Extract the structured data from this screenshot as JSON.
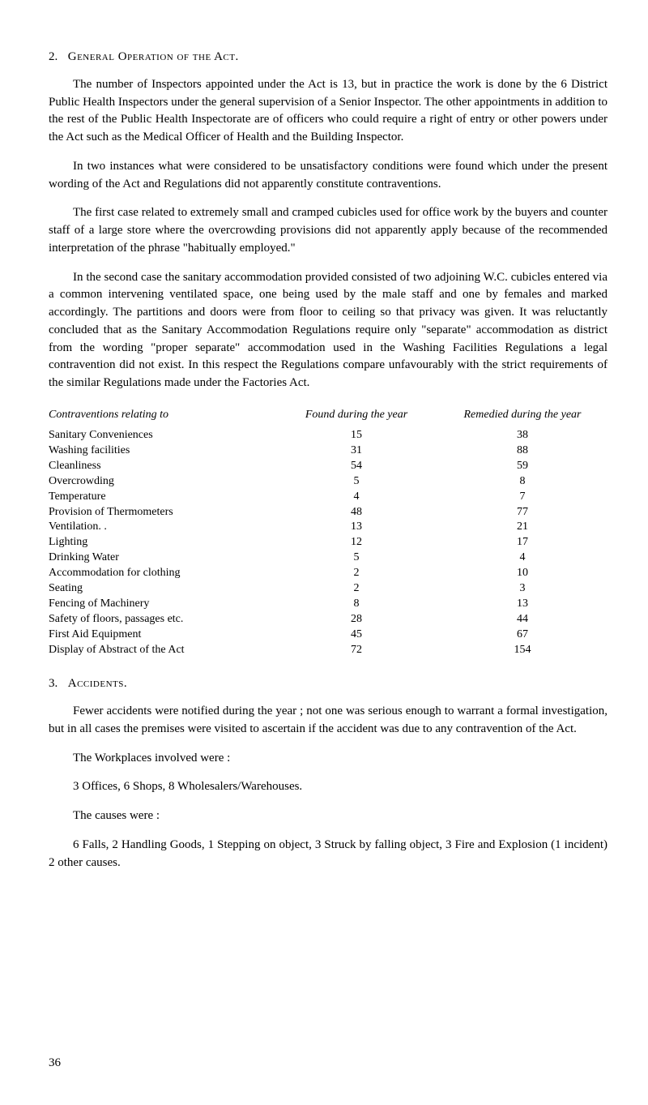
{
  "section2": {
    "number": "2.",
    "title": "General Operation of the Act.",
    "para1": "The number of Inspectors appointed under the Act is 13, but in practice the work is done by the 6 District Public Health Inspectors under the general supervision of a Senior Inspector. The other appointments in addition to the rest of the Public Health Inspectorate are of officers who could require a right of entry or other powers under the Act such as the Medical Officer of Health and the Building Inspector.",
    "para2": "In two instances what were considered to be unsatisfactory conditions were found which under the present wording of the Act and Regulations did not apparently constitute contraventions.",
    "para3": "The first case related to extremely small and cramped cubicles used for office work by the buyers and counter staff of a large store where the overcrowding provisions did not apparently apply because of the recommended interpretation of the phrase \"habitually employed.\"",
    "para4": "In the second case the sanitary accommodation provided consisted of two adjoining W.C. cubicles entered via a common intervening ventilated space, one being used by the male staff and one by females and marked accordingly. The partitions and doors were from floor to ceiling so that privacy was given. It was reluctantly concluded that as the Sanitary Accommodation Regulations require only \"separate\" accommodation as district from the wording \"proper separate\" accommodation used in the Washing Facilities Regulations a legal contravention did not exist. In this respect the Regulations compare unfavourably with the strict requirements of the similar Regulations made under the Factories Act."
  },
  "table": {
    "header": {
      "col1": "Contraventions relating to",
      "col2": "Found during the year",
      "col3": "Remedied during the year"
    },
    "rows": [
      {
        "label": "Sanitary Conveniences",
        "found": "15",
        "remedied": "38"
      },
      {
        "label": "Washing facilities",
        "found": "31",
        "remedied": "88"
      },
      {
        "label": "Cleanliness",
        "found": "54",
        "remedied": "59"
      },
      {
        "label": "Overcrowding",
        "found": "5",
        "remedied": "8"
      },
      {
        "label": "Temperature",
        "found": "4",
        "remedied": "7"
      },
      {
        "label": "Provision of Thermometers",
        "found": "48",
        "remedied": "77"
      },
      {
        "label": "Ventilation. .",
        "found": "13",
        "remedied": "21"
      },
      {
        "label": "Lighting",
        "found": "12",
        "remedied": "17"
      },
      {
        "label": "Drinking Water",
        "found": "5",
        "remedied": "4"
      },
      {
        "label": "Accommodation for clothing",
        "found": "2",
        "remedied": "10"
      },
      {
        "label": "Seating",
        "found": "2",
        "remedied": "3"
      },
      {
        "label": "Fencing of Machinery",
        "found": "8",
        "remedied": "13"
      },
      {
        "label": "Safety of floors, passages etc.",
        "found": "28",
        "remedied": "44"
      },
      {
        "label": "First Aid Equipment",
        "found": "45",
        "remedied": "67"
      },
      {
        "label": "Display of Abstract of the Act",
        "found": "72",
        "remedied": "154"
      }
    ]
  },
  "section3": {
    "number": "3.",
    "title": "Accidents.",
    "para1": "Fewer accidents were notified during the year ; not one was serious enough to warrant a formal investigation, but in all cases the premises were visited to ascertain if the accident was due to any contravention of the Act.",
    "para2": "The Workplaces involved were :",
    "para3": "3 Offices, 6 Shops, 8 Wholesalers/Warehouses.",
    "para4": "The causes were :",
    "para5": "6 Falls, 2 Handling Goods, 1 Stepping on object, 3 Struck by falling object, 3 Fire and Explosion (1 incident) 2 other causes."
  },
  "pageNumber": "36"
}
